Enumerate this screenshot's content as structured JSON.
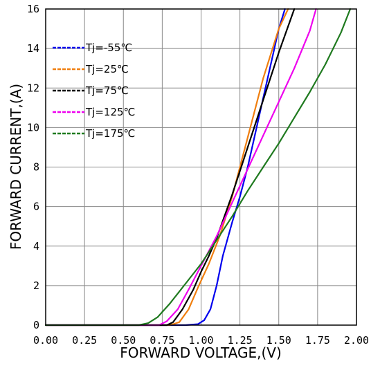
{
  "chart_data": {
    "type": "line",
    "xlabel": "FORWARD VOLTAGE,(V)",
    "ylabel": "FORWARD CURRENT,(A)",
    "xlim": [
      0,
      2.0
    ],
    "ylim": [
      0,
      16
    ],
    "x_ticks": [
      "0.00",
      "0.25",
      "0.50",
      "0.75",
      "1.00",
      "1.25",
      "1.50",
      "1.75",
      "2.00"
    ],
    "y_ticks": [
      "0",
      "2",
      "4",
      "6",
      "8",
      "10",
      "12",
      "14",
      "16"
    ],
    "grid": true,
    "legend_position": "top-left",
    "series": [
      {
        "name": "Tj=-55℃",
        "color": "#0000ee",
        "x": [
          0.0,
          0.9,
          0.98,
          1.02,
          1.06,
          1.1,
          1.14,
          1.2,
          1.25,
          1.3,
          1.4,
          1.5,
          1.54
        ],
        "y": [
          0.0,
          0.0,
          0.05,
          0.25,
          0.8,
          2.0,
          3.5,
          5.2,
          6.5,
          8.0,
          11.5,
          15.0,
          16.0
        ]
      },
      {
        "name": "Tj=25℃",
        "color": "#f07f0f",
        "x": [
          0.0,
          0.8,
          0.86,
          0.92,
          0.98,
          1.05,
          1.12,
          1.2,
          1.3,
          1.4,
          1.5,
          1.56
        ],
        "y": [
          0.0,
          0.0,
          0.15,
          0.8,
          1.9,
          3.1,
          4.5,
          6.5,
          9.5,
          12.5,
          15.0,
          16.0
        ]
      },
      {
        "name": "Tj=75℃",
        "color": "#000000",
        "x": [
          0.0,
          0.78,
          0.82,
          0.88,
          0.95,
          1.0,
          1.05,
          1.1,
          1.2,
          1.3,
          1.4,
          1.5,
          1.6
        ],
        "y": [
          0.0,
          0.0,
          0.15,
          0.8,
          1.8,
          2.7,
          3.5,
          4.4,
          6.6,
          9.0,
          11.4,
          13.8,
          16.0
        ]
      },
      {
        "name": "Tj=125℃",
        "color": "#ee00ee",
        "x": [
          0.0,
          0.73,
          0.78,
          0.85,
          0.92,
          1.0,
          1.1,
          1.2,
          1.3,
          1.4,
          1.5,
          1.6,
          1.7,
          1.74
        ],
        "y": [
          0.0,
          0.0,
          0.2,
          0.8,
          1.8,
          3.0,
          4.5,
          6.2,
          7.9,
          9.6,
          11.3,
          13.0,
          14.9,
          16.0
        ]
      },
      {
        "name": "Tj=175℃",
        "color": "#1f7a1f",
        "x": [
          0.0,
          0.6,
          0.66,
          0.72,
          0.8,
          0.9,
          1.0,
          1.1,
          1.2,
          1.3,
          1.4,
          1.5,
          1.6,
          1.7,
          1.8,
          1.9,
          1.96
        ],
        "y": [
          0.0,
          0.0,
          0.1,
          0.4,
          1.1,
          2.1,
          3.1,
          4.3,
          5.5,
          6.8,
          8.0,
          9.2,
          10.5,
          11.8,
          13.2,
          14.8,
          16.0
        ]
      }
    ]
  }
}
